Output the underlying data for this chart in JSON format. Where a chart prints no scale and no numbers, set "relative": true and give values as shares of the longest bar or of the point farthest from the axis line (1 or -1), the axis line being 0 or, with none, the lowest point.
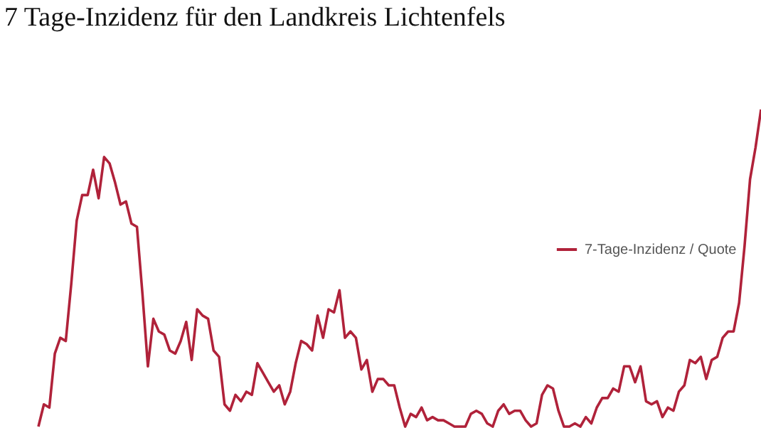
{
  "chart_data": {
    "type": "line",
    "title": "7 Tage-Inzidenz für den Landkreis Lichtenfels",
    "relative": true,
    "legend": "right",
    "line_style": "solid",
    "categories": [
      null,
      null,
      null,
      null,
      null,
      null,
      null,
      null,
      null,
      null,
      null,
      null,
      null,
      null,
      null,
      null,
      null,
      null,
      null,
      null,
      null,
      null,
      null,
      null,
      null,
      null,
      null,
      null,
      null,
      null,
      null,
      null,
      null,
      null,
      null,
      null,
      null,
      null,
      null,
      null,
      null,
      null,
      null,
      null,
      null,
      null,
      null,
      null,
      null,
      null,
      null,
      null,
      null,
      null,
      null,
      null,
      null,
      null,
      null,
      null,
      null,
      null,
      null,
      null,
      null,
      null,
      null,
      null,
      null,
      null,
      null,
      null,
      null,
      null,
      null,
      null,
      null,
      null,
      null,
      null,
      null,
      null,
      null,
      null,
      null,
      null,
      null,
      null,
      null,
      null,
      null,
      null,
      null,
      null,
      null,
      null,
      null,
      null,
      null,
      null,
      null,
      null,
      null,
      null,
      null,
      null,
      null,
      null,
      null,
      null,
      null,
      null,
      null,
      null,
      null,
      null,
      null,
      null,
      null,
      null,
      null,
      null,
      null,
      null,
      null,
      null,
      null,
      null,
      null,
      null,
      null,
      null,
      null
    ],
    "series": [
      {
        "name": "7-Tage-Inzidenz / Quote",
        "color": "#b0223a",
        "values": [
          0,
          0.07,
          0.06,
          0.23,
          0.28,
          0.27,
          0.45,
          0.65,
          0.73,
          0.73,
          0.81,
          0.72,
          0.85,
          0.83,
          0.77,
          0.7,
          0.71,
          0.64,
          0.63,
          0.42,
          0.19,
          0.34,
          0.3,
          0.29,
          0.24,
          0.23,
          0.27,
          0.33,
          0.21,
          0.37,
          0.35,
          0.34,
          0.24,
          0.22,
          0.07,
          0.05,
          0.1,
          0.08,
          0.11,
          0.1,
          0.2,
          0.17,
          0.14,
          0.11,
          0.13,
          0.07,
          0.11,
          0.2,
          0.27,
          0.26,
          0.24,
          0.35,
          0.28,
          0.37,
          0.36,
          0.43,
          0.28,
          0.3,
          0.28,
          0.18,
          0.21,
          0.11,
          0.15,
          0.15,
          0.13,
          0.13,
          0.06,
          0,
          0.04,
          0.03,
          0.06,
          0.02,
          0.03,
          0.02,
          0.02,
          0.01,
          0,
          0,
          0,
          0.04,
          0.05,
          0.04,
          0.01,
          0,
          0.05,
          0.07,
          0.04,
          0.05,
          0.05,
          0.02,
          0,
          0.01,
          0.1,
          0.13,
          0.12,
          0.05,
          0,
          0,
          0.01,
          0,
          0.03,
          0.01,
          0.06,
          0.09,
          0.09,
          0.12,
          0.11,
          0.19,
          0.19,
          0.14,
          0.19,
          0.08,
          0.07,
          0.08,
          0.03,
          0.06,
          0.05,
          0.11,
          0.13,
          0.21,
          0.2,
          0.22,
          0.15,
          0.21,
          0.22,
          0.28,
          0.3,
          0.3,
          0.39,
          0.57,
          0.78,
          0.88,
          1
        ]
      }
    ]
  }
}
